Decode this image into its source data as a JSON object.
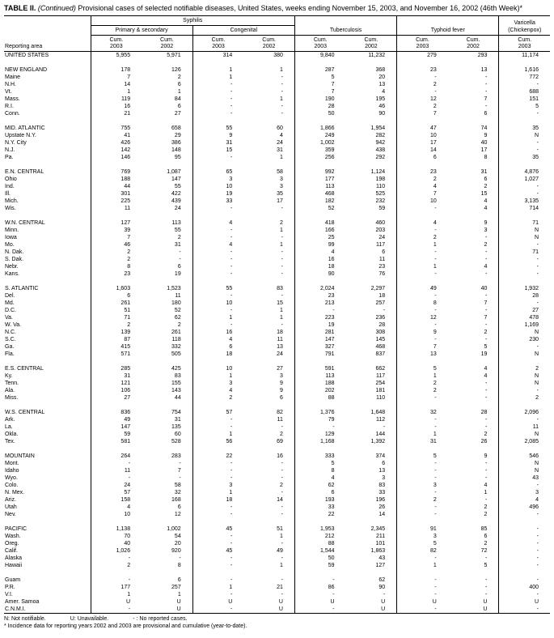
{
  "title": {
    "label": "TABLE II.",
    "continued": "(Continued)",
    "text": "Provisional cases of selected notifiable diseases, United States, weeks ending November 15, 2003, and November 16, 2002 (46th Week)*"
  },
  "colors": {
    "text": "#000000",
    "background": "#ffffff",
    "rules": "#000000"
  },
  "header": {
    "reporting_area": "Reporting area",
    "syphilis": "Syphilis",
    "primary_secondary": "Primary & secondary",
    "congenital": "Congenital",
    "tuberculosis": "Tuberculosis",
    "typhoid_fever": "Typhoid fever",
    "varicella_line1": "Varicella",
    "varicella_line2": "(Chickenpox)",
    "cum_label": "Cum.",
    "years": [
      "2003",
      "2002",
      "2003",
      "2002",
      "2003",
      "2002",
      "2003",
      "2002",
      "2003"
    ]
  },
  "rows": [
    {
      "kind": "total",
      "area": "UNITED STATES",
      "v": [
        "5,955",
        "5,971",
        "314",
        "380",
        "9,840",
        "11,232",
        "279",
        "293",
        "11,174"
      ]
    },
    {
      "kind": "spacer"
    },
    {
      "kind": "region",
      "area": "NEW ENGLAND",
      "v": [
        "178",
        "126",
        "1",
        "1",
        "287",
        "368",
        "23",
        "13",
        "1,616"
      ]
    },
    {
      "kind": "state",
      "area": "Maine",
      "v": [
        "7",
        "2",
        "1",
        "-",
        "5",
        "20",
        "-",
        "-",
        "772"
      ]
    },
    {
      "kind": "state",
      "area": "N.H.",
      "v": [
        "14",
        "6",
        "-",
        "-",
        "7",
        "13",
        "2",
        "-",
        "-"
      ]
    },
    {
      "kind": "state",
      "area": "Vt.",
      "v": [
        "1",
        "1",
        "-",
        "-",
        "7",
        "4",
        "-",
        "-",
        "688"
      ]
    },
    {
      "kind": "state",
      "area": "Mass.",
      "v": [
        "119",
        "84",
        "-",
        "1",
        "190",
        "195",
        "12",
        "7",
        "151"
      ]
    },
    {
      "kind": "state",
      "area": "R.I.",
      "v": [
        "16",
        "6",
        "-",
        "-",
        "28",
        "46",
        "2",
        "-",
        "5"
      ]
    },
    {
      "kind": "state",
      "area": "Conn.",
      "v": [
        "21",
        "27",
        "-",
        "-",
        "50",
        "90",
        "7",
        "6",
        "-"
      ]
    },
    {
      "kind": "spacer"
    },
    {
      "kind": "region",
      "area": "MID. ATLANTIC",
      "v": [
        "755",
        "658",
        "55",
        "60",
        "1,866",
        "1,954",
        "47",
        "74",
        "35"
      ]
    },
    {
      "kind": "state",
      "area": "Upstate N.Y.",
      "v": [
        "41",
        "29",
        "9",
        "4",
        "249",
        "282",
        "10",
        "9",
        "N"
      ]
    },
    {
      "kind": "state",
      "area": "N.Y. City",
      "v": [
        "426",
        "386",
        "31",
        "24",
        "1,002",
        "942",
        "17",
        "40",
        "-"
      ]
    },
    {
      "kind": "state",
      "area": "N.J.",
      "v": [
        "142",
        "148",
        "15",
        "31",
        "359",
        "438",
        "14",
        "17",
        "-"
      ]
    },
    {
      "kind": "state",
      "area": "Pa.",
      "v": [
        "146",
        "95",
        "-",
        "1",
        "256",
        "292",
        "6",
        "8",
        "35"
      ]
    },
    {
      "kind": "spacer"
    },
    {
      "kind": "region",
      "area": "E.N. CENTRAL",
      "v": [
        "769",
        "1,087",
        "65",
        "58",
        "992",
        "1,124",
        "23",
        "31",
        "4,876"
      ]
    },
    {
      "kind": "state",
      "area": "Ohio",
      "v": [
        "188",
        "147",
        "3",
        "3",
        "177",
        "198",
        "2",
        "6",
        "1,027"
      ]
    },
    {
      "kind": "state",
      "area": "Ind.",
      "v": [
        "44",
        "55",
        "10",
        "3",
        "113",
        "110",
        "4",
        "2",
        "-"
      ]
    },
    {
      "kind": "state",
      "area": "Ill.",
      "v": [
        "301",
        "422",
        "19",
        "35",
        "468",
        "525",
        "7",
        "15",
        "-"
      ]
    },
    {
      "kind": "state",
      "area": "Mich.",
      "v": [
        "225",
        "439",
        "33",
        "17",
        "182",
        "232",
        "10",
        "4",
        "3,135"
      ]
    },
    {
      "kind": "state",
      "area": "Wis.",
      "v": [
        "11",
        "24",
        "-",
        "-",
        "52",
        "59",
        "-",
        "4",
        "714"
      ]
    },
    {
      "kind": "spacer"
    },
    {
      "kind": "region",
      "area": "W.N. CENTRAL",
      "v": [
        "127",
        "113",
        "4",
        "2",
        "418",
        "460",
        "4",
        "9",
        "71"
      ]
    },
    {
      "kind": "state",
      "area": "Minn.",
      "v": [
        "39",
        "55",
        "-",
        "1",
        "166",
        "203",
        "-",
        "3",
        "N"
      ]
    },
    {
      "kind": "state",
      "area": "Iowa",
      "v": [
        "7",
        "2",
        "-",
        "-",
        "25",
        "24",
        "2",
        "-",
        "N"
      ]
    },
    {
      "kind": "state",
      "area": "Mo.",
      "v": [
        "46",
        "31",
        "4",
        "1",
        "99",
        "117",
        "1",
        "2",
        "-"
      ]
    },
    {
      "kind": "state",
      "area": "N. Dak.",
      "v": [
        "2",
        "-",
        "-",
        "-",
        "4",
        "6",
        "-",
        "-",
        "71"
      ]
    },
    {
      "kind": "state",
      "area": "S. Dak.",
      "v": [
        "2",
        "-",
        "-",
        "-",
        "16",
        "11",
        "-",
        "-",
        "-"
      ]
    },
    {
      "kind": "state",
      "area": "Nebr.",
      "v": [
        "8",
        "6",
        "-",
        "-",
        "18",
        "23",
        "1",
        "4",
        "-"
      ]
    },
    {
      "kind": "state",
      "area": "Kans.",
      "v": [
        "23",
        "19",
        "-",
        "-",
        "90",
        "76",
        "-",
        "-",
        "-"
      ]
    },
    {
      "kind": "spacer"
    },
    {
      "kind": "region",
      "area": "S. ATLANTIC",
      "v": [
        "1,603",
        "1,523",
        "55",
        "83",
        "2,024",
        "2,297",
        "49",
        "40",
        "1,932"
      ]
    },
    {
      "kind": "state",
      "area": "Del.",
      "v": [
        "6",
        "11",
        "-",
        "-",
        "23",
        "18",
        "-",
        "-",
        "28"
      ]
    },
    {
      "kind": "state",
      "area": "Md.",
      "v": [
        "261",
        "180",
        "10",
        "15",
        "213",
        "257",
        "8",
        "7",
        "-"
      ]
    },
    {
      "kind": "state",
      "area": "D.C.",
      "v": [
        "51",
        "52",
        "-",
        "1",
        "-",
        "-",
        "-",
        "-",
        "27"
      ]
    },
    {
      "kind": "state",
      "area": "Va.",
      "v": [
        "71",
        "62",
        "1",
        "1",
        "223",
        "236",
        "12",
        "7",
        "478"
      ]
    },
    {
      "kind": "state",
      "area": "W. Va.",
      "v": [
        "2",
        "2",
        "-",
        "-",
        "19",
        "28",
        "-",
        "-",
        "1,169"
      ]
    },
    {
      "kind": "state",
      "area": "N.C.",
      "v": [
        "139",
        "261",
        "16",
        "18",
        "281",
        "308",
        "9",
        "2",
        "N"
      ]
    },
    {
      "kind": "state",
      "area": "S.C.",
      "v": [
        "87",
        "118",
        "4",
        "11",
        "147",
        "145",
        "-",
        "-",
        "230"
      ]
    },
    {
      "kind": "state",
      "area": "Ga.",
      "v": [
        "415",
        "332",
        "6",
        "13",
        "327",
        "468",
        "7",
        "5",
        "-"
      ]
    },
    {
      "kind": "state",
      "area": "Fla.",
      "v": [
        "571",
        "505",
        "18",
        "24",
        "791",
        "837",
        "13",
        "19",
        "N"
      ]
    },
    {
      "kind": "spacer"
    },
    {
      "kind": "region",
      "area": "E.S. CENTRAL",
      "v": [
        "285",
        "425",
        "10",
        "27",
        "591",
        "662",
        "5",
        "4",
        "2"
      ]
    },
    {
      "kind": "state",
      "area": "Ky.",
      "v": [
        "31",
        "83",
        "1",
        "3",
        "113",
        "117",
        "1",
        "4",
        "N"
      ]
    },
    {
      "kind": "state",
      "area": "Tenn.",
      "v": [
        "121",
        "155",
        "3",
        "9",
        "188",
        "254",
        "2",
        "-",
        "N"
      ]
    },
    {
      "kind": "state",
      "area": "Ala.",
      "v": [
        "106",
        "143",
        "4",
        "9",
        "202",
        "181",
        "2",
        "-",
        "-"
      ]
    },
    {
      "kind": "state",
      "area": "Miss.",
      "v": [
        "27",
        "44",
        "2",
        "6",
        "88",
        "110",
        "-",
        "-",
        "2"
      ]
    },
    {
      "kind": "spacer"
    },
    {
      "kind": "region",
      "area": "W.S. CENTRAL",
      "v": [
        "836",
        "754",
        "57",
        "82",
        "1,376",
        "1,648",
        "32",
        "28",
        "2,096"
      ]
    },
    {
      "kind": "state",
      "area": "Ark.",
      "v": [
        "49",
        "31",
        "-",
        "11",
        "79",
        "112",
        "-",
        "-",
        "-"
      ]
    },
    {
      "kind": "state",
      "area": "La.",
      "v": [
        "147",
        "135",
        "-",
        "-",
        "-",
        "-",
        "-",
        "-",
        "11"
      ]
    },
    {
      "kind": "state",
      "area": "Okla.",
      "v": [
        "59",
        "60",
        "1",
        "2",
        "129",
        "144",
        "1",
        "2",
        "N"
      ]
    },
    {
      "kind": "state",
      "area": "Tex.",
      "v": [
        "581",
        "528",
        "56",
        "69",
        "1,168",
        "1,392",
        "31",
        "26",
        "2,085"
      ]
    },
    {
      "kind": "spacer"
    },
    {
      "kind": "region",
      "area": "MOUNTAIN",
      "v": [
        "264",
        "283",
        "22",
        "16",
        "333",
        "374",
        "5",
        "9",
        "546"
      ]
    },
    {
      "kind": "state",
      "area": "Mont.",
      "v": [
        "-",
        "-",
        "-",
        "-",
        "5",
        "6",
        "-",
        "-",
        "N"
      ]
    },
    {
      "kind": "state",
      "area": "Idaho",
      "v": [
        "11",
        "7",
        "-",
        "-",
        "8",
        "13",
        "-",
        "-",
        "N"
      ]
    },
    {
      "kind": "state",
      "area": "Wyo.",
      "v": [
        "-",
        "-",
        "-",
        "-",
        "4",
        "3",
        "-",
        "-",
        "43"
      ]
    },
    {
      "kind": "state",
      "area": "Colo.",
      "v": [
        "24",
        "58",
        "3",
        "2",
        "62",
        "83",
        "3",
        "4",
        "-"
      ]
    },
    {
      "kind": "state",
      "area": "N. Mex.",
      "v": [
        "57",
        "32",
        "1",
        "-",
        "6",
        "33",
        "-",
        "1",
        "3"
      ]
    },
    {
      "kind": "state",
      "area": "Ariz.",
      "v": [
        "158",
        "168",
        "18",
        "14",
        "193",
        "196",
        "2",
        "-",
        "4"
      ]
    },
    {
      "kind": "state",
      "area": "Utah",
      "v": [
        "4",
        "6",
        "-",
        "-",
        "33",
        "26",
        "-",
        "2",
        "496"
      ]
    },
    {
      "kind": "state",
      "area": "Nev.",
      "v": [
        "10",
        "12",
        "-",
        "-",
        "22",
        "14",
        "-",
        "2",
        "-"
      ]
    },
    {
      "kind": "spacer"
    },
    {
      "kind": "region",
      "area": "PACIFIC",
      "v": [
        "1,138",
        "1,002",
        "45",
        "51",
        "1,953",
        "2,345",
        "91",
        "85",
        "-"
      ]
    },
    {
      "kind": "state",
      "area": "Wash.",
      "v": [
        "70",
        "54",
        "-",
        "1",
        "212",
        "211",
        "3",
        "6",
        "-"
      ]
    },
    {
      "kind": "state",
      "area": "Oreg.",
      "v": [
        "40",
        "20",
        "-",
        "-",
        "88",
        "101",
        "5",
        "2",
        "-"
      ]
    },
    {
      "kind": "state",
      "area": "Calif.",
      "v": [
        "1,026",
        "920",
        "45",
        "49",
        "1,544",
        "1,863",
        "82",
        "72",
        "-"
      ]
    },
    {
      "kind": "state",
      "area": "Alaska",
      "v": [
        "-",
        "-",
        "-",
        "-",
        "50",
        "43",
        "-",
        "-",
        "-"
      ]
    },
    {
      "kind": "state",
      "area": "Hawaii",
      "v": [
        "2",
        "8",
        "-",
        "1",
        "59",
        "127",
        "1",
        "5",
        "-"
      ]
    },
    {
      "kind": "spacer"
    },
    {
      "kind": "territory",
      "area": "Guam",
      "v": [
        "-",
        "6",
        "-",
        "-",
        "-",
        "62",
        "-",
        "-",
        "-"
      ]
    },
    {
      "kind": "territory",
      "area": "P.R.",
      "v": [
        "177",
        "257",
        "1",
        "21",
        "86",
        "90",
        "-",
        "-",
        "400"
      ]
    },
    {
      "kind": "territory",
      "area": "V.I.",
      "v": [
        "1",
        "1",
        "-",
        "-",
        "-",
        "-",
        "-",
        "-",
        "-"
      ]
    },
    {
      "kind": "territory",
      "area": "Amer. Samoa",
      "v": [
        "U",
        "U",
        "U",
        "U",
        "U",
        "U",
        "U",
        "U",
        "U"
      ]
    },
    {
      "kind": "territory",
      "area": "C.N.M.I.",
      "v": [
        "-",
        "U",
        "-",
        "U",
        "-",
        "U",
        "-",
        "U",
        "-"
      ]
    }
  ],
  "footnotes": {
    "legend": [
      "N: Not notifiable.",
      "U: Unavailable.",
      "- : No reported cases."
    ],
    "note": "* Incidence data for reporting years 2002 and 2003 are provisional and cumulative (year-to-date)."
  }
}
